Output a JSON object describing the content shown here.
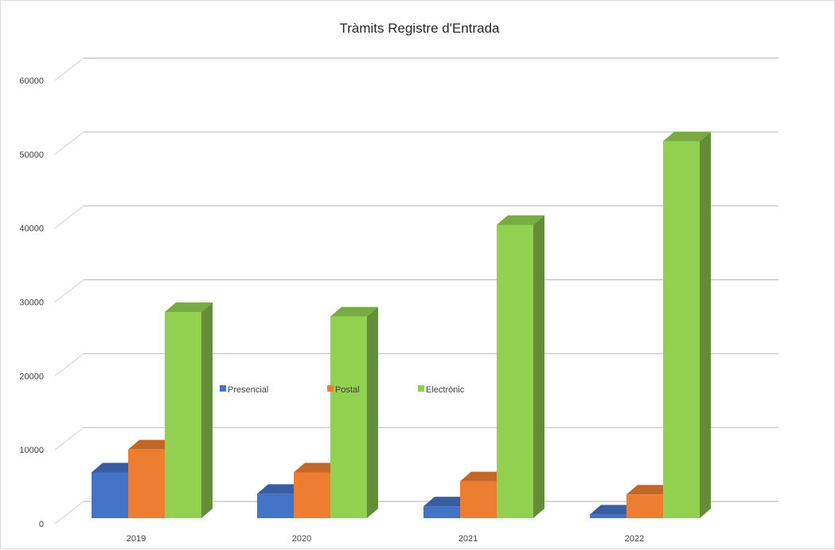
{
  "chart_data": {
    "type": "bar",
    "title": "Tràmits Registre d'Entrada",
    "categories": [
      "2019",
      "2020",
      "2021",
      "2022"
    ],
    "series": [
      {
        "name": "Presencial",
        "color": "#4472c4",
        "values": [
          6200,
          3300,
          1600,
          500
        ]
      },
      {
        "name": "Postal",
        "color": "#ed7d31",
        "values": [
          9300,
          6200,
          5000,
          3200
        ]
      },
      {
        "name": "Electrònic",
        "color": "#92d050",
        "values": [
          27900,
          27300,
          39700,
          51000
        ]
      }
    ],
    "yticks": [
      "0",
      "10000",
      "20000",
      "30000",
      "40000",
      "50000",
      "60000"
    ],
    "ylim": [
      0,
      60000
    ],
    "grid": true,
    "legend_position": "center",
    "style": "3d-clustered-column"
  }
}
